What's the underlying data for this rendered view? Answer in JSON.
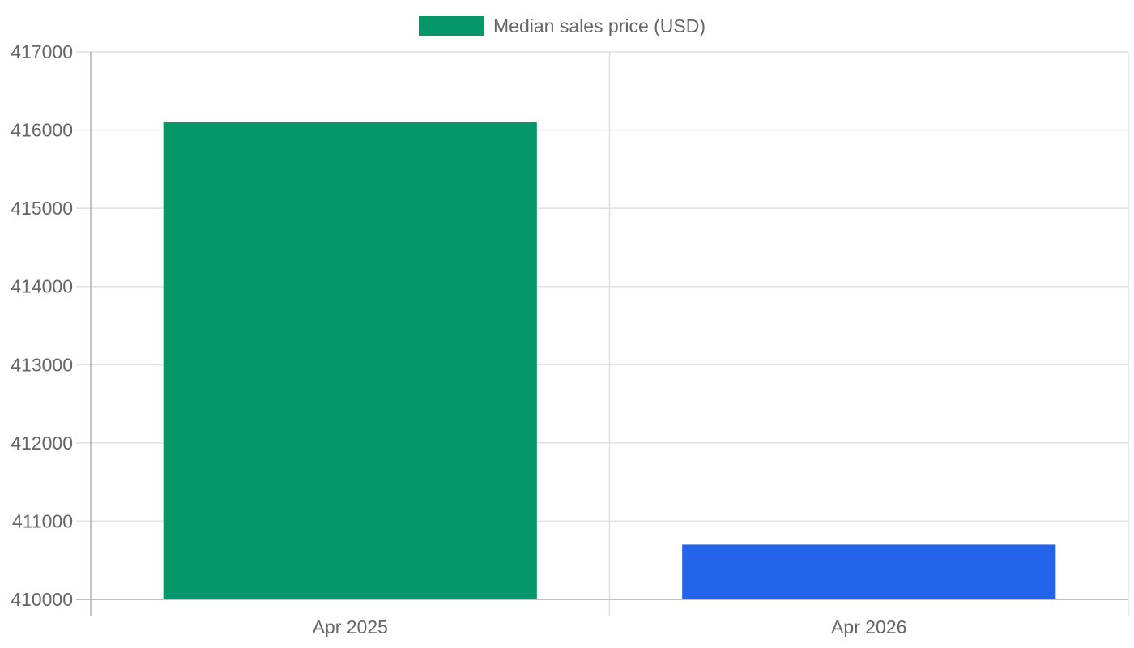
{
  "chart_data": {
    "type": "bar",
    "categories": [
      "Apr 2025",
      "Apr 2026"
    ],
    "series": [
      {
        "name": "Median sales price (USD)",
        "values": [
          416100,
          410700
        ]
      }
    ],
    "bar_colors": [
      "#059669",
      "#2563eb"
    ],
    "legend_color": "#059669",
    "legend_position": "top-center",
    "ylim": [
      410000,
      417000
    ],
    "y_ticks": [
      410000,
      411000,
      412000,
      413000,
      414000,
      415000,
      416000,
      417000
    ],
    "y_tick_labels": [
      "410000",
      "411000",
      "412000",
      "413000",
      "414000",
      "415000",
      "416000",
      "417000"
    ],
    "grid": true,
    "grid_color": "#e0e0e0",
    "axis_color": "#b0b0b0"
  }
}
